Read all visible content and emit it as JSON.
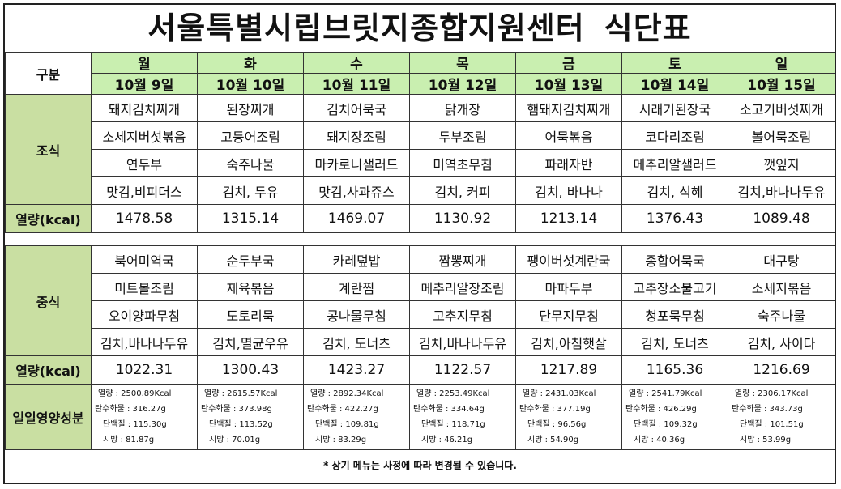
{
  "title": {
    "main": "서울특별시립브릿지종합지원센터",
    "sub": "식단표"
  },
  "header": {
    "label": "구분",
    "days": [
      "월",
      "화",
      "수",
      "목",
      "금",
      "토",
      "일"
    ],
    "dates": [
      "10월 9일",
      "10월 10일",
      "10월 11일",
      "10월 12일",
      "10월 13일",
      "10월 14일",
      "10월 15일"
    ]
  },
  "breakfast": {
    "label": "조식",
    "rows": [
      [
        "돼지김치찌개",
        "된장찌개",
        "김치어묵국",
        "닭개장",
        "햄돼지김치찌개",
        "시래기된장국",
        "소고기버섯찌개"
      ],
      [
        "소세지버섯볶음",
        "고등어조림",
        "돼지장조림",
        "두부조림",
        "어묵볶음",
        "코다리조림",
        "볼어묵조림"
      ],
      [
        "연두부",
        "숙주나물",
        "마카로니샐러드",
        "미역초무침",
        "파래자반",
        "메추리알샐러드",
        "깻잎지"
      ],
      [
        "맛김,비피더스",
        "김치, 두유",
        "맛김,사과쥬스",
        "김치, 커피",
        "김치, 바나나",
        "김치, 식혜",
        "김치,바나나두유"
      ]
    ],
    "kcal_label": "열량(kcal)",
    "kcal": [
      "1478.58",
      "1315.14",
      "1469.07",
      "1130.92",
      "1213.14",
      "1376.43",
      "1089.48"
    ]
  },
  "lunch": {
    "label": "중식",
    "rows": [
      [
        "북어미역국",
        "순두부국",
        "카레덮밥",
        "짬뽕찌개",
        "팽이버섯계란국",
        "종합어묵국",
        "대구탕"
      ],
      [
        "미트볼조림",
        "제육볶음",
        "계란찜",
        "메추리알장조림",
        "마파두부",
        "고추장소불고기",
        "소세지볶음"
      ],
      [
        "오이양파무침",
        "도토리묵",
        "콩나물무침",
        "고추지무침",
        "단무지무침",
        "청포묵무침",
        "숙주나물"
      ],
      [
        "김치,바나나두유",
        "김치,멸균우유",
        "김치, 도너츠",
        "김치,바나나두유",
        "김치,아침햇살",
        "김치, 도너츠",
        "김치, 사이다"
      ]
    ],
    "kcal_label": "열량(kcal)",
    "kcal": [
      "1022.31",
      "1300.43",
      "1423.27",
      "1122.57",
      "1217.89",
      "1165.36",
      "1216.69"
    ]
  },
  "nutrition": {
    "label": "일일영양성분",
    "days": [
      [
        "열량 : 2500.89Kcal",
        "탄수화물 : 316.27g",
        "단백질 : 115.30g",
        "지방 : 81.87g"
      ],
      [
        "열량 : 2615.57Kcal",
        "탄수화물 : 373.98g",
        "단백질 : 113.52g",
        "지방 : 70.01g"
      ],
      [
        "열량 : 2892.34Kcal",
        "탄수화물 : 422.27g",
        "단백질 : 109.81g",
        "지방 : 83.29g"
      ],
      [
        "열량 : 2253.49Kcal",
        "탄수화물 : 334.64g",
        "단백질 : 118.71g",
        "지방 : 46.21g"
      ],
      [
        "열량 : 2431.03Kcal",
        "탄수화물 : 377.19g",
        "단백질 : 96.56g",
        "지방 : 54.90g"
      ],
      [
        "열량 : 2541.79Kcal",
        "탄수화물 : 426.29g",
        "단백질 : 109.32g",
        "지방 : 40.36g"
      ],
      [
        "열량 : 2306.17Kcal",
        "탄수화물 : 343.73g",
        "단백질 : 101.51g",
        "지방 : 53.99g"
      ]
    ]
  },
  "footer_note": "* 상기 메뉴는 사정에 따라 변경될 수 있습니다.",
  "colors": {
    "header_green": "#c9efb0",
    "label_green": "#c9dfa2"
  }
}
